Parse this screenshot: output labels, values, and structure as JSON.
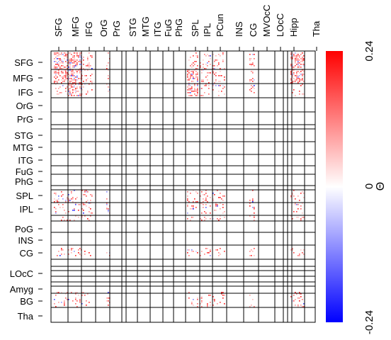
{
  "chart_data": {
    "type": "heatmap",
    "title": "",
    "xlabel": "",
    "ylabel": "",
    "x_tick_labels": [
      "SFG",
      "MFG",
      "IFG",
      "OrG",
      "PrG",
      "STG",
      "MTG",
      "ITG",
      "FuG",
      "PhG",
      "SPL",
      "IPL",
      "PCun",
      "INS",
      "CG",
      "MVOcC",
      "LOcC",
      "Hipp",
      "Tha"
    ],
    "y_tick_labels": [
      "SFG",
      "MFG",
      "IFG",
      "OrG",
      "PrG",
      "STG",
      "MTG",
      "ITG",
      "FuG",
      "PhG",
      "SPL",
      "IPL",
      "PoG",
      "INS",
      "CG",
      "LOcC",
      "Amyg",
      "BG",
      "Tha"
    ],
    "colorbar": {
      "label": "Θ",
      "min": -0.24,
      "max": 0.24,
      "tick_labels": [
        "0.24",
        "0",
        "-0.24"
      ],
      "colors": {
        "negative": "#0000ff",
        "zero": "#ffffff",
        "positive": "#ff0000"
      }
    },
    "grid": true,
    "structure": "sparse block matrix of 24x24 brain region blocks; nonzero entries concentrated in frontal (SFG, MFG, IFG), parietal (SPL, IPL), CG, BG and Hipp blocks; mostly positive with a few negative entries"
  }
}
